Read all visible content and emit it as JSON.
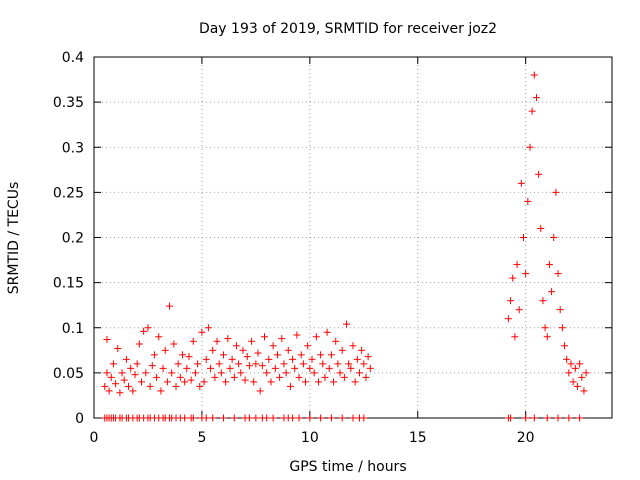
{
  "chart_data": {
    "type": "scatter",
    "title": "Day 193 of 2019, SRMTID for receiver joz2",
    "xlabel": "GPS time / hours",
    "ylabel": "SRMTID / TECUs",
    "xlim": [
      0,
      24
    ],
    "ylim": [
      0,
      0.4
    ],
    "x_ticks": [
      0,
      5,
      10,
      15,
      20
    ],
    "y_ticks": [
      0,
      0.05,
      0.1,
      0.15,
      0.2,
      0.25,
      0.3,
      0.35,
      0.4
    ],
    "x_tick_labels": [
      "0",
      "5",
      "10",
      "15",
      "20"
    ],
    "y_tick_labels": [
      "0",
      "0.05",
      "0.1",
      "0.15",
      "0.2",
      "0.25",
      "0.3",
      "0.35",
      "0.4"
    ],
    "grid": true,
    "marker": "+",
    "marker_color": "#ff0000",
    "series": [
      {
        "points": [
          [
            0.5,
            0.035
          ],
          [
            0.6,
            0.05
          ],
          [
            0.6,
            0.087
          ],
          [
            0.7,
            0.03
          ],
          [
            0.8,
            0.045
          ],
          [
            0.9,
            0.06
          ],
          [
            1.0,
            0.038
          ],
          [
            1.1,
            0.077
          ],
          [
            1.2,
            0.028
          ],
          [
            1.3,
            0.05
          ],
          [
            1.4,
            0.042
          ],
          [
            1.5,
            0.065
          ],
          [
            1.6,
            0.035
          ],
          [
            1.7,
            0.055
          ],
          [
            1.8,
            0.03
          ],
          [
            1.9,
            0.048
          ],
          [
            2.0,
            0.06
          ],
          [
            2.1,
            0.082
          ],
          [
            2.2,
            0.04
          ],
          [
            2.3,
            0.096
          ],
          [
            2.4,
            0.05
          ],
          [
            2.5,
            0.1
          ],
          [
            2.6,
            0.035
          ],
          [
            2.7,
            0.058
          ],
          [
            2.8,
            0.07
          ],
          [
            2.9,
            0.045
          ],
          [
            3.0,
            0.09
          ],
          [
            3.1,
            0.03
          ],
          [
            3.2,
            0.055
          ],
          [
            3.3,
            0.075
          ],
          [
            3.4,
            0.04
          ],
          [
            3.5,
            0.124
          ],
          [
            3.6,
            0.05
          ],
          [
            3.7,
            0.082
          ],
          [
            3.8,
            0.035
          ],
          [
            3.9,
            0.06
          ],
          [
            4.0,
            0.045
          ],
          [
            4.1,
            0.07
          ],
          [
            4.2,
            0.04
          ],
          [
            4.3,
            0.055
          ],
          [
            4.4,
            0.068
          ],
          [
            4.5,
            0.042
          ],
          [
            4.6,
            0.085
          ],
          [
            4.7,
            0.05
          ],
          [
            4.8,
            0.06
          ],
          [
            4.9,
            0.035
          ],
          [
            5.0,
            0.095
          ],
          [
            5.1,
            0.04
          ],
          [
            5.2,
            0.065
          ],
          [
            5.3,
            0.1
          ],
          [
            5.4,
            0.055
          ],
          [
            5.5,
            0.075
          ],
          [
            5.6,
            0.045
          ],
          [
            5.7,
            0.085
          ],
          [
            5.8,
            0.06
          ],
          [
            5.9,
            0.05
          ],
          [
            6.0,
            0.07
          ],
          [
            6.1,
            0.04
          ],
          [
            6.2,
            0.088
          ],
          [
            6.3,
            0.055
          ],
          [
            6.4,
            0.065
          ],
          [
            6.5,
            0.045
          ],
          [
            6.6,
            0.08
          ],
          [
            6.7,
            0.06
          ],
          [
            6.8,
            0.05
          ],
          [
            6.9,
            0.075
          ],
          [
            7.0,
            0.042
          ],
          [
            7.1,
            0.068
          ],
          [
            7.2,
            0.058
          ],
          [
            7.3,
            0.085
          ],
          [
            7.4,
            0.04
          ],
          [
            7.5,
            0.06
          ],
          [
            7.6,
            0.072
          ],
          [
            7.7,
            0.03
          ],
          [
            7.8,
            0.058
          ],
          [
            7.9,
            0.09
          ],
          [
            8.0,
            0.05
          ],
          [
            8.1,
            0.065
          ],
          [
            8.2,
            0.04
          ],
          [
            8.3,
            0.08
          ],
          [
            8.4,
            0.055
          ],
          [
            8.5,
            0.07
          ],
          [
            8.6,
            0.045
          ],
          [
            8.7,
            0.088
          ],
          [
            8.8,
            0.06
          ],
          [
            8.9,
            0.05
          ],
          [
            9.0,
            0.075
          ],
          [
            9.1,
            0.035
          ],
          [
            9.2,
            0.065
          ],
          [
            9.3,
            0.055
          ],
          [
            9.4,
            0.092
          ],
          [
            9.5,
            0.045
          ],
          [
            9.6,
            0.07
          ],
          [
            9.7,
            0.06
          ],
          [
            9.8,
            0.04
          ],
          [
            9.9,
            0.08
          ],
          [
            10.0,
            0.055
          ],
          [
            10.1,
            0.065
          ],
          [
            10.2,
            0.05
          ],
          [
            10.3,
            0.09
          ],
          [
            10.4,
            0.04
          ],
          [
            10.5,
            0.07
          ],
          [
            10.6,
            0.06
          ],
          [
            10.7,
            0.045
          ],
          [
            10.8,
            0.095
          ],
          [
            10.9,
            0.055
          ],
          [
            11.0,
            0.07
          ],
          [
            11.1,
            0.04
          ],
          [
            11.2,
            0.085
          ],
          [
            11.3,
            0.06
          ],
          [
            11.4,
            0.05
          ],
          [
            11.5,
            0.075
          ],
          [
            11.6,
            0.045
          ],
          [
            11.7,
            0.104
          ],
          [
            11.8,
            0.06
          ],
          [
            11.9,
            0.055
          ],
          [
            12.0,
            0.08
          ],
          [
            12.1,
            0.04
          ],
          [
            12.2,
            0.065
          ],
          [
            12.3,
            0.05
          ],
          [
            12.4,
            0.075
          ],
          [
            12.5,
            0.06
          ],
          [
            12.6,
            0.045
          ],
          [
            12.7,
            0.068
          ],
          [
            12.8,
            0.055
          ],
          [
            19.2,
            0.11
          ],
          [
            19.3,
            0.13
          ],
          [
            19.4,
            0.155
          ],
          [
            19.5,
            0.09
          ],
          [
            19.6,
            0.17
          ],
          [
            19.7,
            0.12
          ],
          [
            19.8,
            0.26
          ],
          [
            19.9,
            0.2
          ],
          [
            20.0,
            0.16
          ],
          [
            20.1,
            0.24
          ],
          [
            20.2,
            0.3
          ],
          [
            20.3,
            0.34
          ],
          [
            20.4,
            0.38
          ],
          [
            20.5,
            0.355
          ],
          [
            20.6,
            0.27
          ],
          [
            20.7,
            0.21
          ],
          [
            20.8,
            0.13
          ],
          [
            20.9,
            0.1
          ],
          [
            21.0,
            0.09
          ],
          [
            21.1,
            0.17
          ],
          [
            21.2,
            0.14
          ],
          [
            21.3,
            0.2
          ],
          [
            21.4,
            0.25
          ],
          [
            21.5,
            0.16
          ],
          [
            21.6,
            0.12
          ],
          [
            21.7,
            0.1
          ],
          [
            21.8,
            0.08
          ],
          [
            21.9,
            0.065
          ],
          [
            22.0,
            0.05
          ],
          [
            22.1,
            0.06
          ],
          [
            22.2,
            0.04
          ],
          [
            22.3,
            0.055
          ],
          [
            22.4,
            0.035
          ],
          [
            22.5,
            0.06
          ],
          [
            22.6,
            0.045
          ],
          [
            22.7,
            0.03
          ],
          [
            22.8,
            0.05
          ]
        ]
      }
    ],
    "zero_points_x": [
      0.5,
      0.6,
      0.7,
      0.8,
      0.9,
      1.0,
      1.2,
      1.3,
      1.5,
      1.6,
      1.8,
      2.0,
      2.1,
      2.3,
      2.5,
      2.6,
      2.8,
      3.0,
      3.2,
      3.3,
      3.5,
      3.6,
      3.8,
      4.0,
      4.2,
      4.5,
      4.6,
      5.0,
      5.2,
      5.5,
      6.0,
      6.5,
      7.0,
      7.2,
      7.5,
      7.8,
      8.0,
      8.3,
      8.8,
      9.0,
      9.2,
      9.5,
      10.0,
      10.5,
      11.0,
      11.5,
      12.0,
      12.3,
      12.5,
      19.2,
      19.3,
      20.0,
      20.4,
      21.0,
      21.5,
      22.0,
      22.5
    ]
  }
}
